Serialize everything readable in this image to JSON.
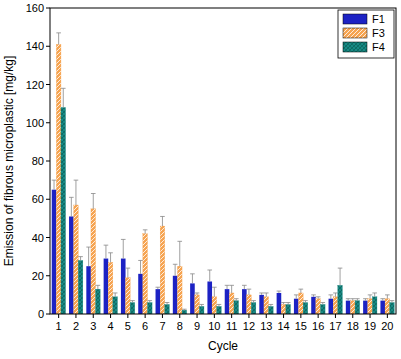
{
  "chart_data": {
    "type": "bar",
    "x_label": "Cycle",
    "y_label": "Emission of fibrous microplastic [mg/kg]",
    "categories": [
      "1",
      "2",
      "3",
      "4",
      "5",
      "6",
      "7",
      "8",
      "9",
      "10",
      "11",
      "12",
      "13",
      "14",
      "15",
      "16",
      "17",
      "18",
      "19",
      "20"
    ],
    "series": [
      {
        "name": "F1",
        "color": "#1c22c4",
        "values": [
          65,
          51,
          25,
          29,
          29,
          21,
          13,
          20,
          16,
          17,
          13,
          13,
          10,
          11,
          8,
          9,
          8,
          7,
          7,
          7
        ],
        "errors": [
          5,
          10,
          10,
          7,
          10,
          7,
          1,
          6,
          5,
          6,
          2,
          2,
          1,
          1,
          2,
          1,
          2,
          1,
          1,
          1
        ]
      },
      {
        "name": "F3",
        "color": "#f6a451",
        "values": [
          141,
          57,
          55,
          27,
          19,
          42,
          46,
          25,
          10,
          9,
          11,
          10,
          9,
          5,
          11,
          8,
          9,
          7,
          8,
          8
        ],
        "errors": [
          6,
          13,
          8,
          5,
          5,
          2,
          5,
          13,
          1,
          5,
          4,
          3,
          2,
          1,
          2,
          1,
          2,
          1,
          2,
          2
        ]
      },
      {
        "name": "F4",
        "color": "#178a84",
        "values": [
          108,
          28,
          13,
          9,
          6,
          6,
          5,
          2,
          4,
          4,
          7,
          6,
          4,
          5,
          6,
          5,
          15,
          7,
          9,
          6
        ],
        "errors": [
          10,
          2,
          2,
          2,
          1,
          1,
          1,
          0.5,
          1,
          1,
          1,
          1,
          1,
          1,
          1,
          1,
          9,
          1,
          2,
          1
        ]
      }
    ],
    "ylim": [
      0,
      160
    ],
    "yticks": [
      0,
      20,
      40,
      60,
      80,
      100,
      120,
      140,
      160
    ],
    "legend": "top-right",
    "grid": false
  }
}
